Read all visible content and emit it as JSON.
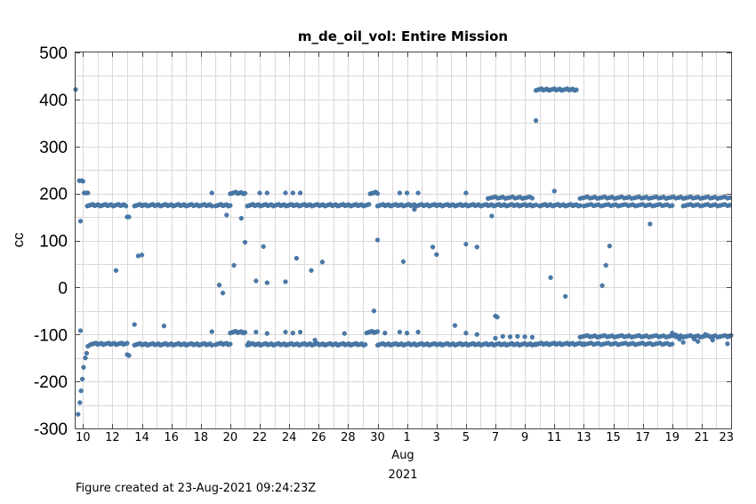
{
  "chart_data": {
    "type": "scatter",
    "title": "m_de_oil_vol: Entire Mission",
    "ylabel": "cc",
    "xlabel_month": "Aug",
    "xlabel_year": "2021",
    "ylim": [
      -300,
      500
    ],
    "yticks": [
      500,
      400,
      300,
      200,
      100,
      0,
      -100,
      -200,
      -300
    ],
    "x_start_day": "2021-07-09T12:00",
    "x_end_day": "2021-08-23T00:00",
    "xticks": [
      {
        "label": "10",
        "date": "2021-07-10"
      },
      {
        "label": "12",
        "date": "2021-07-12"
      },
      {
        "label": "14",
        "date": "2021-07-14"
      },
      {
        "label": "16",
        "date": "2021-07-16"
      },
      {
        "label": "18",
        "date": "2021-07-18"
      },
      {
        "label": "20",
        "date": "2021-07-20"
      },
      {
        "label": "22",
        "date": "2021-07-22"
      },
      {
        "label": "24",
        "date": "2021-07-24"
      },
      {
        "label": "26",
        "date": "2021-07-26"
      },
      {
        "label": "28",
        "date": "2021-07-28"
      },
      {
        "label": "30",
        "date": "2021-07-30"
      },
      {
        "label": "1",
        "date": "2021-08-01"
      },
      {
        "label": "3",
        "date": "2021-08-03"
      },
      {
        "label": "5",
        "date": "2021-08-05"
      },
      {
        "label": "7",
        "date": "2021-08-07"
      },
      {
        "label": "9",
        "date": "2021-08-09"
      },
      {
        "label": "11",
        "date": "2021-08-11"
      },
      {
        "label": "13",
        "date": "2021-08-13"
      },
      {
        "label": "15",
        "date": "2021-08-15"
      },
      {
        "label": "17",
        "date": "2021-08-17"
      },
      {
        "label": "19",
        "date": "2021-08-19"
      },
      {
        "label": "21",
        "date": "2021-08-21"
      },
      {
        "label": "23",
        "date": "2021-08-23"
      }
    ],
    "grid": true,
    "series": [
      {
        "color": "#4a7aa9",
        "segments": [
          {
            "t0": "2021-07-10T07:00",
            "t1": "2021-07-13T00:00",
            "value": 175,
            "step_hours": 3
          },
          {
            "t0": "2021-07-13T12:00",
            "t1": "2021-07-18T18:00",
            "value": 175,
            "step_hours": 3
          },
          {
            "t0": "2021-07-19T00:00",
            "t1": "2021-07-20T00:00",
            "value": 175,
            "step_hours": 3
          },
          {
            "t0": "2021-07-21T04:00",
            "t1": "2021-07-29T12:00",
            "value": 175,
            "step_hours": 3
          },
          {
            "t0": "2021-07-30T00:00",
            "t1": "2021-08-09T18:00",
            "value": 175,
            "step_hours": 3
          },
          {
            "t0": "2021-08-10T00:00",
            "t1": "2021-08-12T18:00",
            "value": 175,
            "step_hours": 3
          },
          {
            "t0": "2021-08-13T00:00",
            "t1": "2021-08-19T00:00",
            "value": 175,
            "step_hours": 4
          },
          {
            "t0": "2021-08-19T18:00",
            "t1": "2021-08-23T00:00",
            "value": 175,
            "step_hours": 4
          },
          {
            "t0": "2021-08-06T12:00",
            "t1": "2021-08-09T12:00",
            "value": 191,
            "step_hours": 4
          },
          {
            "t0": "2021-08-12T18:00",
            "t1": "2021-08-23T00:00",
            "value": 191,
            "step_hours": 4
          },
          {
            "t0": "2021-07-20T00:00",
            "t1": "2021-07-21T00:00",
            "value": 201,
            "step_hours": 3
          },
          {
            "t0": "2021-07-29T12:00",
            "t1": "2021-07-30T00:00",
            "value": 201,
            "step_hours": 3
          },
          {
            "t0": "2021-08-09T18:00",
            "t1": "2021-08-12T12:00",
            "value": 421,
            "step_hours": 3
          },
          {
            "t0": "2021-07-10T12:00",
            "t1": "2021-07-13T00:00",
            "value": -120,
            "step_hours": 3
          },
          {
            "t0": "2021-07-13T12:00",
            "t1": "2021-07-18T18:00",
            "value": -121,
            "step_hours": 3
          },
          {
            "t0": "2021-07-19T00:00",
            "t1": "2021-07-20T00:00",
            "value": -120,
            "step_hours": 3
          },
          {
            "t0": "2021-07-20T00:00",
            "t1": "2021-07-21T00:00",
            "value": -95,
            "step_hours": 3
          },
          {
            "t0": "2021-07-21T04:00",
            "t1": "2021-07-29T06:00",
            "value": -121,
            "step_hours": 3
          },
          {
            "t0": "2021-07-29T06:00",
            "t1": "2021-07-30T00:00",
            "value": -95,
            "step_hours": 3
          },
          {
            "t0": "2021-07-30T00:00",
            "t1": "2021-08-09T18:00",
            "value": -121,
            "step_hours": 3
          },
          {
            "t0": "2021-08-09T18:00",
            "t1": "2021-08-13T00:00",
            "value": -120,
            "step_hours": 3
          },
          {
            "t0": "2021-08-13T00:00",
            "t1": "2021-08-19T00:00",
            "value": -120,
            "step_hours": 4
          },
          {
            "t0": "2021-08-12T18:00",
            "t1": "2021-08-23T00:00",
            "value": -104,
            "step_hours": 4
          }
        ],
        "points": [
          {
            "x": "2021-07-09T12:00",
            "y": 421
          },
          {
            "x": "2021-07-09T18:00",
            "y": 227
          },
          {
            "x": "2021-07-09T20:00",
            "y": 141
          },
          {
            "x": "2021-07-09T22:00",
            "y": 227
          },
          {
            "x": "2021-07-10T00:00",
            "y": 226
          },
          {
            "x": "2021-07-10T02:00",
            "y": 201
          },
          {
            "x": "2021-07-10T05:00",
            "y": 201
          },
          {
            "x": "2021-07-10T08:00",
            "y": 201
          },
          {
            "x": "2021-07-09T16:00",
            "y": -270
          },
          {
            "x": "2021-07-09T19:00",
            "y": -245
          },
          {
            "x": "2021-07-09T21:00",
            "y": -220
          },
          {
            "x": "2021-07-09T23:00",
            "y": -195
          },
          {
            "x": "2021-07-10T01:00",
            "y": -170
          },
          {
            "x": "2021-07-10T04:00",
            "y": -150
          },
          {
            "x": "2021-07-10T06:00",
            "y": -140
          },
          {
            "x": "2021-07-10T08:00",
            "y": -125
          },
          {
            "x": "2021-07-09T20:00",
            "y": -92
          },
          {
            "x": "2021-07-12T06:00",
            "y": 36
          },
          {
            "x": "2021-07-13T00:00",
            "y": 150
          },
          {
            "x": "2021-07-13T03:00",
            "y": 150
          },
          {
            "x": "2021-07-13T00:00",
            "y": -143
          },
          {
            "x": "2021-07-13T03:00",
            "y": -145
          },
          {
            "x": "2021-07-13T12:00",
            "y": -79
          },
          {
            "x": "2021-07-13T18:00",
            "y": 67
          },
          {
            "x": "2021-07-14T00:00",
            "y": 69
          },
          {
            "x": "2021-07-15T12:00",
            "y": -82
          },
          {
            "x": "2021-07-18T18:00",
            "y": 201
          },
          {
            "x": "2021-07-18T18:00",
            "y": -94
          },
          {
            "x": "2021-07-19T06:00",
            "y": 5
          },
          {
            "x": "2021-07-19T12:00",
            "y": -12
          },
          {
            "x": "2021-07-19T18:00",
            "y": 154
          },
          {
            "x": "2021-07-20T06:00",
            "y": 47
          },
          {
            "x": "2021-07-20T18:00",
            "y": 147
          },
          {
            "x": "2021-07-21T00:00",
            "y": 96
          },
          {
            "x": "2021-07-21T06:00",
            "y": -118
          },
          {
            "x": "2021-07-21T18:00",
            "y": -95
          },
          {
            "x": "2021-07-21T18:00",
            "y": 14
          },
          {
            "x": "2021-07-22T00:00",
            "y": 201
          },
          {
            "x": "2021-07-22T06:00",
            "y": 87
          },
          {
            "x": "2021-07-22T12:00",
            "y": 10
          },
          {
            "x": "2021-07-22T12:00",
            "y": 201
          },
          {
            "x": "2021-07-22T12:00",
            "y": -98
          },
          {
            "x": "2021-07-23T18:00",
            "y": 12
          },
          {
            "x": "2021-07-23T18:00",
            "y": -95
          },
          {
            "x": "2021-07-23T18:00",
            "y": 201
          },
          {
            "x": "2021-07-24T06:00",
            "y": 201
          },
          {
            "x": "2021-07-24T06:00",
            "y": -97
          },
          {
            "x": "2021-07-24T12:00",
            "y": 62
          },
          {
            "x": "2021-07-24T18:00",
            "y": 201
          },
          {
            "x": "2021-07-24T18:00",
            "y": -95
          },
          {
            "x": "2021-07-25T12:00",
            "y": 36
          },
          {
            "x": "2021-07-25T18:00",
            "y": -112
          },
          {
            "x": "2021-07-26T06:00",
            "y": 54
          },
          {
            "x": "2021-07-27T18:00",
            "y": -98
          },
          {
            "x": "2021-07-30T00:00",
            "y": 101
          },
          {
            "x": "2021-07-29T18:00",
            "y": -50
          },
          {
            "x": "2021-07-29T18:00",
            "y": 201
          },
          {
            "x": "2021-07-30T12:00",
            "y": -97
          },
          {
            "x": "2021-07-31T12:00",
            "y": 201
          },
          {
            "x": "2021-07-31T12:00",
            "y": -95
          },
          {
            "x": "2021-07-31T18:00",
            "y": 55
          },
          {
            "x": "2021-08-01T00:00",
            "y": 201
          },
          {
            "x": "2021-08-01T00:00",
            "y": -97
          },
          {
            "x": "2021-08-01T12:00",
            "y": 166
          },
          {
            "x": "2021-08-01T18:00",
            "y": 201
          },
          {
            "x": "2021-08-01T18:00",
            "y": -95
          },
          {
            "x": "2021-08-02T18:00",
            "y": 86
          },
          {
            "x": "2021-08-03T00:00",
            "y": 70
          },
          {
            "x": "2021-08-04T06:00",
            "y": -81
          },
          {
            "x": "2021-08-05T00:00",
            "y": 201
          },
          {
            "x": "2021-08-05T00:00",
            "y": 92
          },
          {
            "x": "2021-08-05T00:00",
            "y": -97
          },
          {
            "x": "2021-08-05T18:00",
            "y": 86
          },
          {
            "x": "2021-08-05T18:00",
            "y": -100
          },
          {
            "x": "2021-08-06T18:00",
            "y": 152
          },
          {
            "x": "2021-08-07T00:00",
            "y": -61
          },
          {
            "x": "2021-08-07T03:00",
            "y": -63
          },
          {
            "x": "2021-08-07T00:00",
            "y": -108
          },
          {
            "x": "2021-08-07T12:00",
            "y": -104
          },
          {
            "x": "2021-08-08T00:00",
            "y": -105
          },
          {
            "x": "2021-08-08T12:00",
            "y": -104
          },
          {
            "x": "2021-08-09T00:00",
            "y": -105
          },
          {
            "x": "2021-08-09T12:00",
            "y": -106
          },
          {
            "x": "2021-08-09T18:00",
            "y": 355
          },
          {
            "x": "2021-08-10T18:00",
            "y": 21
          },
          {
            "x": "2021-08-11T00:00",
            "y": 205
          },
          {
            "x": "2021-08-11T18:00",
            "y": -19
          },
          {
            "x": "2021-08-14T06:00",
            "y": 4
          },
          {
            "x": "2021-08-14T12:00",
            "y": 47
          },
          {
            "x": "2021-08-14T18:00",
            "y": 88
          },
          {
            "x": "2021-08-17T12:00",
            "y": 135
          },
          {
            "x": "2021-08-19T00:00",
            "y": -97
          },
          {
            "x": "2021-08-19T06:00",
            "y": -101
          },
          {
            "x": "2021-08-19T12:00",
            "y": -110
          },
          {
            "x": "2021-08-19T18:00",
            "y": -117
          },
          {
            "x": "2021-08-20T12:00",
            "y": -110
          },
          {
            "x": "2021-08-20T18:00",
            "y": -115
          },
          {
            "x": "2021-08-21T06:00",
            "y": -100
          },
          {
            "x": "2021-08-21T18:00",
            "y": -112
          },
          {
            "x": "2021-08-22T18:00",
            "y": -120
          },
          {
            "x": "2021-08-23T00:00",
            "y": -102
          }
        ]
      }
    ]
  },
  "footer": {
    "created": "Figure created at 23-Aug-2021 09:24:23Z"
  }
}
